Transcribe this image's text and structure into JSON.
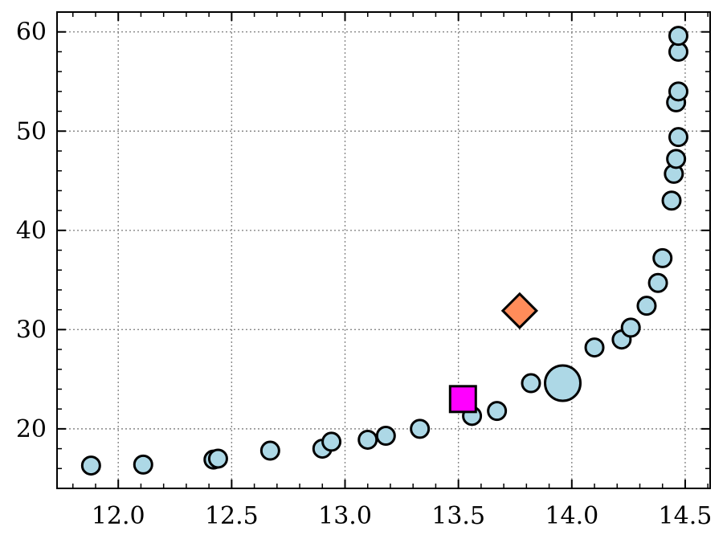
{
  "chart_data": {
    "type": "scatter",
    "title": "",
    "xlabel": "",
    "ylabel": "",
    "xlim": [
      11.73,
      14.61
    ],
    "ylim": [
      14.0,
      62.0
    ],
    "grid": true,
    "xticks": [
      12.0,
      12.5,
      13.0,
      13.5,
      14.0,
      14.5
    ],
    "xtick_labels": [
      "12.0",
      "12.5",
      "13.0",
      "13.5",
      "14.0",
      "14.5"
    ],
    "yticks": [
      20,
      30,
      40,
      50,
      60
    ],
    "ytick_labels": [
      "20",
      "30",
      "40",
      "50",
      "60"
    ],
    "series": [
      {
        "marker": "circle",
        "color": "#add8e6",
        "points": [
          [
            11.88,
            16.3
          ],
          [
            12.11,
            16.4
          ],
          [
            12.42,
            16.9
          ],
          [
            12.44,
            17.0
          ],
          [
            12.67,
            17.8
          ],
          [
            12.9,
            18.0
          ],
          [
            12.94,
            18.7
          ],
          [
            13.1,
            18.9
          ],
          [
            13.18,
            19.3
          ],
          [
            13.33,
            20.0
          ],
          [
            13.56,
            21.3
          ],
          [
            13.67,
            21.8
          ],
          [
            13.82,
            24.6
          ],
          [
            14.1,
            28.2
          ],
          [
            14.22,
            29.0
          ],
          [
            14.26,
            30.2
          ],
          [
            14.33,
            32.4
          ],
          [
            14.38,
            34.7
          ],
          [
            14.4,
            37.2
          ],
          [
            14.44,
            43.0
          ],
          [
            14.45,
            45.7
          ],
          [
            14.46,
            47.2
          ],
          [
            14.47,
            49.4
          ],
          [
            14.46,
            52.9
          ],
          [
            14.47,
            54.0
          ],
          [
            14.47,
            58.0
          ],
          [
            14.47,
            59.6
          ]
        ]
      },
      {
        "marker": "circle-large",
        "color": "#add8e6",
        "points": [
          [
            13.96,
            24.6
          ]
        ]
      },
      {
        "marker": "square",
        "color": "#ff00ff",
        "points": [
          [
            13.52,
            23.0
          ]
        ]
      },
      {
        "marker": "diamond",
        "color": "#ff8c5a",
        "points": [
          [
            13.77,
            31.9
          ]
        ]
      }
    ]
  }
}
